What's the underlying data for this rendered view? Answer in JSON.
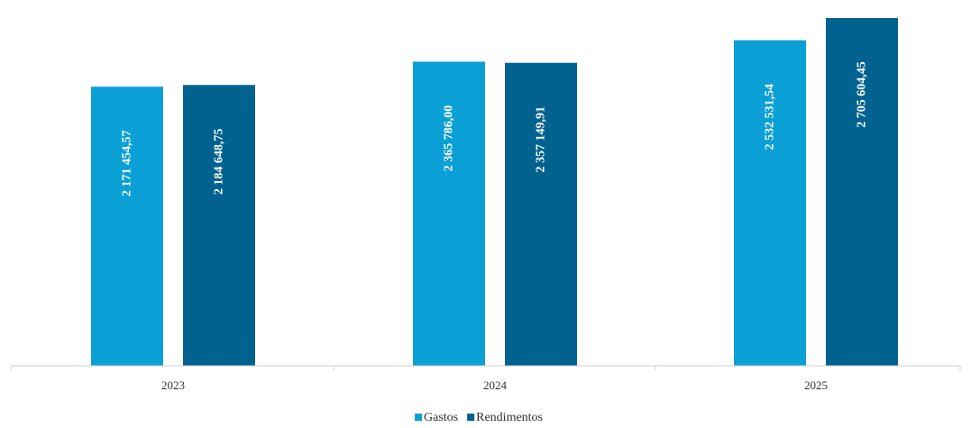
{
  "chart_data": {
    "type": "bar",
    "categories": [
      "2023",
      "2024",
      "2025"
    ],
    "series": [
      {
        "name": "Gastos",
        "color": "#0aa0d6",
        "values": [
          2171454.57,
          2365786.0,
          2532531.54
        ],
        "labels": [
          "2 171 454,57",
          "2 365 786,00",
          "2 532 531,54"
        ]
      },
      {
        "name": "Rendimentos",
        "color": "#01628f",
        "values": [
          2184648.75,
          2357149.91,
          2705604.45
        ],
        "labels": [
          "2 184 648,75",
          "2 357 149,91",
          "2 705 604,45"
        ]
      }
    ],
    "ylim": [
      0,
      2705604.45
    ],
    "grid": false,
    "legend_position": "bottom-center",
    "axis_color": "#d0d0d0"
  }
}
